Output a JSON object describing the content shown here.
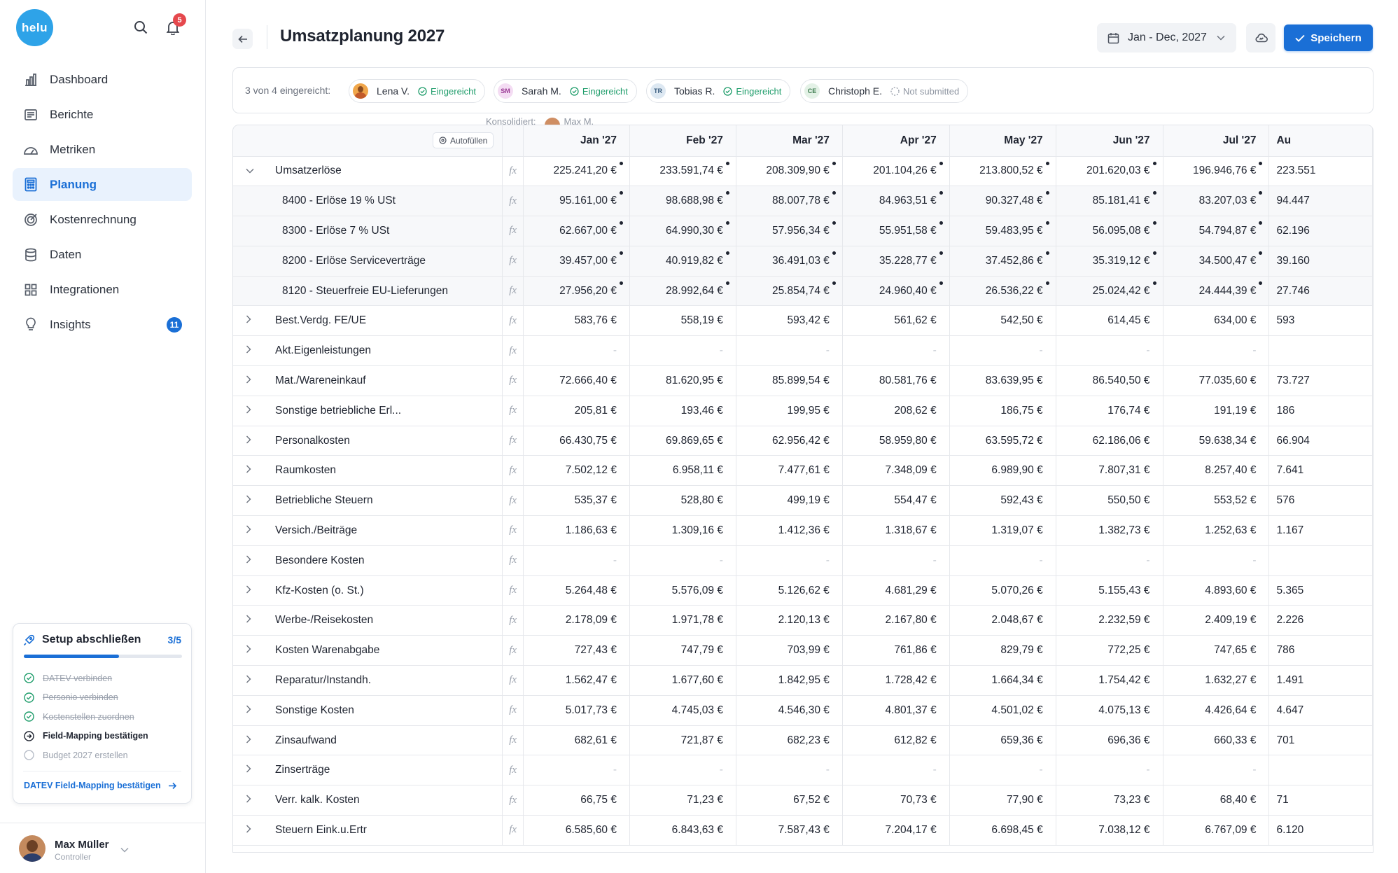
{
  "sidebar": {
    "logo": "helu",
    "notifications_count": "5",
    "nav": [
      {
        "label": "Dashboard",
        "icon": "bar-chart-icon",
        "active": false
      },
      {
        "label": "Berichte",
        "icon": "report-icon",
        "active": false
      },
      {
        "label": "Metriken",
        "icon": "gauge-icon",
        "active": false
      },
      {
        "label": "Planung",
        "icon": "calculator-icon",
        "active": true
      },
      {
        "label": "Kostenrechnung",
        "icon": "target-icon",
        "active": false
      },
      {
        "label": "Daten",
        "icon": "database-icon",
        "active": false
      },
      {
        "label": "Integrationen",
        "icon": "grid-icon",
        "active": false
      },
      {
        "label": "Insights",
        "icon": "lightbulb-icon",
        "active": false,
        "badge": "11"
      }
    ],
    "setup": {
      "title": "Setup abschließen",
      "count": "3/5",
      "progress": 0.6,
      "steps": [
        {
          "label": "DATEV verbinden",
          "state": "done"
        },
        {
          "label": "Personio verbinden",
          "state": "done"
        },
        {
          "label": "Kostenstellen zuordnen",
          "state": "done"
        },
        {
          "label": "Field-Mapping bestätigen",
          "state": "current"
        },
        {
          "label": "Budget 2027 erstellen",
          "state": "todo"
        }
      ],
      "link": "DATEV Field-Mapping bestätigen"
    },
    "user": {
      "name": "Max Müller",
      "role": "Controller"
    }
  },
  "header": {
    "title": "Umsatzplanung 2027",
    "date_range": "Jan - Dec, 2027",
    "save_label": "Speichern"
  },
  "submissions": {
    "summary": "3 von 4 eingereicht:",
    "people": [
      {
        "initials": "",
        "name": "Lena V.",
        "status": "Eingereicht",
        "ok": true
      },
      {
        "initials": "SM",
        "name": "Sarah M.",
        "status": "Eingereicht",
        "ok": true
      },
      {
        "initials": "TR",
        "name": "Tobias R.",
        "status": "Eingereicht",
        "ok": true
      },
      {
        "initials": "CE",
        "name": "Christoph E.",
        "status": "Not submitted",
        "ok": false
      }
    ],
    "consolidated_label": "Konsolidiert:",
    "consolidated_name": "Max M."
  },
  "table": {
    "autofill_label": "Autofüllen",
    "columns": [
      "Jan '27",
      "Feb '27",
      "Mar '27",
      "Apr '27",
      "May '27",
      "Jun '27",
      "Jul '27",
      "Au"
    ],
    "rows": [
      {
        "name": "Umsatzerlöse",
        "expanded": true,
        "sub": false,
        "dots": true,
        "values": [
          "225.241,20 €",
          "233.591,74 €",
          "208.309,90 €",
          "201.104,26 €",
          "213.800,52 €",
          "201.620,03 €",
          "196.946,76 €",
          "223.551"
        ]
      },
      {
        "name": "8400 - Erlöse 19 % USt",
        "sub": true,
        "dots": true,
        "values": [
          "95.161,00 €",
          "98.688,98 €",
          "88.007,78 €",
          "84.963,51 €",
          "90.327,48 €",
          "85.181,41 €",
          "83.207,03 €",
          "94.447"
        ]
      },
      {
        "name": "8300 - Erlöse 7 % USt",
        "sub": true,
        "dots": true,
        "values": [
          "62.667,00 €",
          "64.990,30 €",
          "57.956,34 €",
          "55.951,58 €",
          "59.483,95 €",
          "56.095,08 €",
          "54.794,87 €",
          "62.196"
        ]
      },
      {
        "name": "8200 - Erlöse Serviceverträge",
        "sub": true,
        "dots": true,
        "values": [
          "39.457,00 €",
          "40.919,82 €",
          "36.491,03 €",
          "35.228,77 €",
          "37.452,86 €",
          "35.319,12 €",
          "34.500,47 €",
          "39.160"
        ]
      },
      {
        "name": "8120 - Steuerfreie EU-Lieferungen",
        "sub": true,
        "dots": true,
        "values": [
          "27.956,20 €",
          "28.992,64 €",
          "25.854,74 €",
          "24.960,40 €",
          "26.536,22 €",
          "25.024,42 €",
          "24.444,39 €",
          "27.746"
        ]
      },
      {
        "name": "Best.Verdg. FE/UE",
        "sub": false,
        "values": [
          "583,76 €",
          "558,19 €",
          "593,42 €",
          "561,62 €",
          "542,50 €",
          "614,45 €",
          "634,00 €",
          "593"
        ]
      },
      {
        "name": "Akt.Eigenleistungen",
        "sub": false,
        "values": [
          "-",
          "-",
          "-",
          "-",
          "-",
          "-",
          "-",
          ""
        ]
      },
      {
        "name": "Mat./Wareneinkauf",
        "sub": false,
        "values": [
          "72.666,40 €",
          "81.620,95 €",
          "85.899,54 €",
          "80.581,76 €",
          "83.639,95 €",
          "86.540,50 €",
          "77.035,60 €",
          "73.727"
        ]
      },
      {
        "name": "Sonstige betriebliche Erl...",
        "sub": false,
        "values": [
          "205,81 €",
          "193,46 €",
          "199,95 €",
          "208,62 €",
          "186,75 €",
          "176,74 €",
          "191,19 €",
          "186"
        ]
      },
      {
        "name": "Personalkosten",
        "sub": false,
        "values": [
          "66.430,75 €",
          "69.869,65 €",
          "62.956,42 €",
          "58.959,80 €",
          "63.595,72 €",
          "62.186,06 €",
          "59.638,34 €",
          "66.904"
        ]
      },
      {
        "name": "Raumkosten",
        "sub": false,
        "values": [
          "7.502,12 €",
          "6.958,11 €",
          "7.477,61 €",
          "7.348,09 €",
          "6.989,90 €",
          "7.807,31 €",
          "8.257,40 €",
          "7.641"
        ]
      },
      {
        "name": "Betriebliche Steuern",
        "sub": false,
        "values": [
          "535,37 €",
          "528,80 €",
          "499,19 €",
          "554,47 €",
          "592,43 €",
          "550,50 €",
          "553,52 €",
          "576"
        ]
      },
      {
        "name": "Versich./Beiträge",
        "sub": false,
        "values": [
          "1.186,63 €",
          "1.309,16 €",
          "1.412,36 €",
          "1.318,67 €",
          "1.319,07 €",
          "1.382,73 €",
          "1.252,63 €",
          "1.167"
        ]
      },
      {
        "name": "Besondere Kosten",
        "sub": false,
        "values": [
          "-",
          "-",
          "-",
          "-",
          "-",
          "-",
          "-",
          ""
        ]
      },
      {
        "name": "Kfz-Kosten (o. St.)",
        "sub": false,
        "values": [
          "5.264,48 €",
          "5.576,09 €",
          "5.126,62 €",
          "4.681,29 €",
          "5.070,26 €",
          "5.155,43 €",
          "4.893,60 €",
          "5.365"
        ]
      },
      {
        "name": "Werbe-/Reisekosten",
        "sub": false,
        "values": [
          "2.178,09 €",
          "1.971,78 €",
          "2.120,13 €",
          "2.167,80 €",
          "2.048,67 €",
          "2.232,59 €",
          "2.409,19 €",
          "2.226"
        ]
      },
      {
        "name": "Kosten Warenabgabe",
        "sub": false,
        "values": [
          "727,43 €",
          "747,79 €",
          "703,99 €",
          "761,86 €",
          "829,79 €",
          "772,25 €",
          "747,65 €",
          "786"
        ]
      },
      {
        "name": "Reparatur/Instandh.",
        "sub": false,
        "values": [
          "1.562,47 €",
          "1.677,60 €",
          "1.842,95 €",
          "1.728,42 €",
          "1.664,34 €",
          "1.754,42 €",
          "1.632,27 €",
          "1.491"
        ]
      },
      {
        "name": "Sonstige Kosten",
        "sub": false,
        "values": [
          "5.017,73 €",
          "4.745,03 €",
          "4.546,30 €",
          "4.801,37 €",
          "4.501,02 €",
          "4.075,13 €",
          "4.426,64 €",
          "4.647"
        ]
      },
      {
        "name": "Zinsaufwand",
        "sub": false,
        "values": [
          "682,61 €",
          "721,87 €",
          "682,23 €",
          "612,82 €",
          "659,36 €",
          "696,36 €",
          "660,33 €",
          "701"
        ]
      },
      {
        "name": "Zinserträge",
        "sub": false,
        "values": [
          "-",
          "-",
          "-",
          "-",
          "-",
          "-",
          "-",
          ""
        ]
      },
      {
        "name": "Verr. kalk. Kosten",
        "sub": false,
        "values": [
          "66,75 €",
          "71,23 €",
          "67,52 €",
          "70,73 €",
          "77,90 €",
          "73,23 €",
          "68,40 €",
          "71"
        ]
      },
      {
        "name": "Steuern Eink.u.Ertr",
        "sub": false,
        "values": [
          "6.585,60 €",
          "6.843,63 €",
          "7.587,43 €",
          "7.204,17 €",
          "6.698,45 €",
          "7.038,12 €",
          "6.767,09 €",
          "6.120"
        ]
      }
    ]
  },
  "colors": {
    "accent": "#1a6fd6",
    "success": "#1f9d6b",
    "logo": "#2ea3e8",
    "badge_red": "#e5484d"
  }
}
